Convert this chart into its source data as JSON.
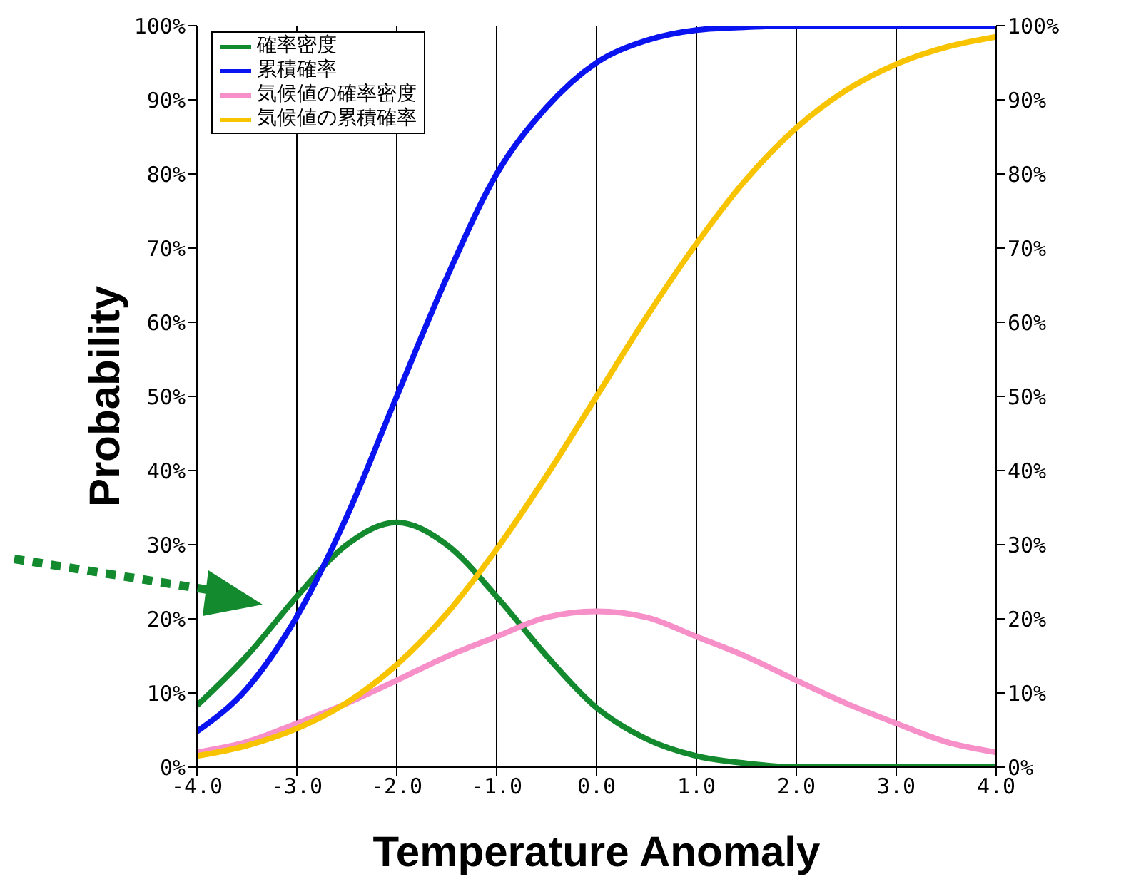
{
  "chart_data": {
    "type": "line",
    "xlabel": "Temperature Anomaly",
    "ylabel": "Probability",
    "x": [
      -4,
      -3.5,
      -3,
      -2.5,
      -2,
      -1.5,
      -1,
      -0.5,
      0,
      0.5,
      1,
      1.5,
      2,
      2.5,
      3,
      3.5,
      4
    ],
    "series": [
      {
        "name": "確率密度",
        "color": "#138a2e",
        "values": [
          8.3,
          15,
          23,
          30,
          33,
          30,
          23,
          15,
          8,
          3.8,
          1.5,
          0.5,
          0,
          0,
          0,
          0,
          0
        ]
      },
      {
        "name": "累積確率",
        "color": "#0a14f0",
        "values": [
          4.8,
          10.6,
          20.3,
          33.8,
          50,
          66,
          80,
          89,
          95,
          98,
          99.4,
          99.8,
          100,
          100,
          100,
          100,
          100
        ]
      },
      {
        "name": "気候値の確率密度",
        "color": "#f78fc8",
        "values": [
          2,
          3.4,
          5.9,
          8.6,
          11.7,
          14.9,
          17.6,
          20.2,
          21,
          20.2,
          17.6,
          14.9,
          11.7,
          8.6,
          5.9,
          3.4,
          2
        ]
      },
      {
        "name": "気候値の累積確率",
        "color": "#f8c400",
        "values": [
          1.5,
          2.9,
          5.2,
          8.7,
          13.8,
          20.7,
          29.4,
          39.3,
          50,
          60.7,
          70.6,
          79.3,
          86.2,
          91.3,
          94.8,
          97.1,
          98.5
        ]
      }
    ],
    "xlim": [
      -4,
      4
    ],
    "xticks": [
      {
        "value": -4,
        "label": "-4.0"
      },
      {
        "value": -3,
        "label": "-3.0"
      },
      {
        "value": -2,
        "label": "-2.0"
      },
      {
        "value": -1,
        "label": "-1.0"
      },
      {
        "value": 0,
        "label": "0.0"
      },
      {
        "value": 1,
        "label": "1.0"
      },
      {
        "value": 2,
        "label": "2.0"
      },
      {
        "value": 3,
        "label": "3.0"
      },
      {
        "value": 4,
        "label": "4.0"
      }
    ],
    "ylim": [
      0,
      100
    ],
    "yticks": [
      {
        "value": 0,
        "label": "0%"
      },
      {
        "value": 10,
        "label": "10%"
      },
      {
        "value": 20,
        "label": "20%"
      },
      {
        "value": 30,
        "label": "30%"
      },
      {
        "value": 40,
        "label": "40%"
      },
      {
        "value": 50,
        "label": "50%"
      },
      {
        "value": 60,
        "label": "60%"
      },
      {
        "value": 70,
        "label": "70%"
      },
      {
        "value": 80,
        "label": "80%"
      },
      {
        "value": 90,
        "label": "90%"
      },
      {
        "value": 100,
        "label": "100%"
      }
    ],
    "y2lim": [
      0,
      100
    ],
    "y2ticks": [
      {
        "value": 0,
        "label": "0%"
      },
      {
        "value": 10,
        "label": "10%"
      },
      {
        "value": 20,
        "label": "20%"
      },
      {
        "value": 30,
        "label": "30%"
      },
      {
        "value": 40,
        "label": "40%"
      },
      {
        "value": 50,
        "label": "50%"
      },
      {
        "value": 60,
        "label": "60%"
      },
      {
        "value": 70,
        "label": "70%"
      },
      {
        "value": 80,
        "label": "80%"
      },
      {
        "value": 90,
        "label": "90%"
      },
      {
        "value": 100,
        "label": "100%"
      }
    ],
    "grid": true,
    "legend": "top left",
    "marker": "none",
    "line_style": "solid"
  }
}
